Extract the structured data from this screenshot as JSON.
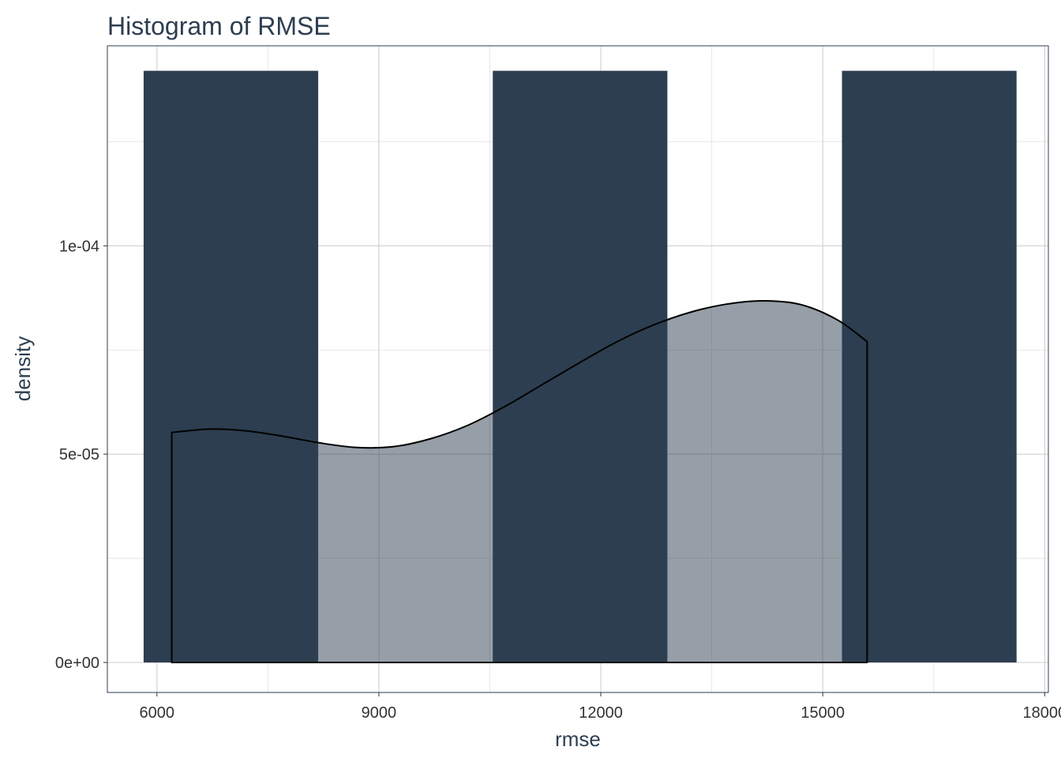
{
  "chart_data": {
    "type": "bar",
    "subtype": "histogram-with-density",
    "title": "Histogram of RMSE",
    "xlabel": "rmse",
    "ylabel": "density",
    "xlim": [
      5330,
      18050
    ],
    "ylim": [
      -7.2e-06,
      0.000148
    ],
    "x_ticks": [
      6000,
      9000,
      12000,
      15000,
      18000
    ],
    "x_tick_labels": [
      "6000",
      "9000",
      "12000",
      "15000",
      "18000"
    ],
    "y_ticks": [
      0,
      5e-05,
      0.0001
    ],
    "y_tick_labels": [
      "0e+00",
      "5e-05",
      "1e-04"
    ],
    "grid": true,
    "histogram": {
      "bins": [
        {
          "x0": 5820,
          "x1": 8180,
          "density": 0.000142
        },
        {
          "x0": 8180,
          "x1": 10540,
          "density": 0
        },
        {
          "x0": 10540,
          "x1": 12900,
          "density": 0.000142
        },
        {
          "x0": 12900,
          "x1": 15260,
          "density": 0
        },
        {
          "x0": 15260,
          "x1": 17620,
          "density": 0.000142
        }
      ],
      "color": "#2d3e50"
    },
    "density_curve": {
      "x": [
        6200,
        6700,
        7200,
        7700,
        8200,
        8700,
        9200,
        9700,
        10200,
        10700,
        11200,
        11700,
        12200,
        12700,
        13200,
        13700,
        14200,
        14700,
        15200,
        15600
      ],
      "y": [
        5.52e-05,
        5.6e-05,
        5.56e-05,
        5.43e-05,
        5.27e-05,
        5.16e-05,
        5.18e-05,
        5.37e-05,
        5.69e-05,
        6.14e-05,
        6.66e-05,
        7.18e-05,
        7.68e-05,
        8.09e-05,
        8.4e-05,
        8.6e-05,
        8.68e-05,
        8.59e-05,
        8.22e-05,
        7.7e-05
      ],
      "fill": "#2d3e50",
      "fill_opacity": 0.5,
      "stroke": "#000000"
    },
    "colors": {
      "bar": "#2d3e50",
      "text": "#2d3e50",
      "tick_text": "#333333",
      "grid": "#cfcfcf",
      "background": "#ffffff"
    }
  }
}
